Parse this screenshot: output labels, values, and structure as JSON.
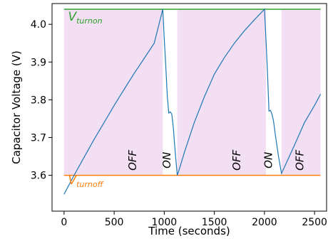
{
  "chart_data": {
    "type": "line",
    "xlabel": "Time (seconds)",
    "ylabel": "Capacitor Voltage (V)",
    "xlim": [
      -120,
      2620
    ],
    "ylim": [
      3.505,
      4.055
    ],
    "grid": false,
    "x_ticks": [
      0,
      500,
      1000,
      1500,
      2000,
      2500
    ],
    "y_ticks": [
      3.6,
      3.7,
      3.8,
      3.9,
      4.0
    ],
    "x_tick_labels": [
      "0",
      "500",
      "1000",
      "1500",
      "2000",
      "2500"
    ],
    "y_tick_labels": [
      "3.6",
      "3.7",
      "3.8",
      "3.9",
      "4.0"
    ],
    "thresholds": [
      {
        "main": "V",
        "sub": "turnon",
        "y": 4.04,
        "color": "#2ca02c",
        "label_x": 40,
        "label_y": 4.01
      },
      {
        "main": "V",
        "sub": "turnoff",
        "y": 3.6,
        "color": "#ff7f0e",
        "label_x": 40,
        "label_y": 3.577
      }
    ],
    "shaded_intervals": [
      {
        "x0": 0,
        "x1": 985,
        "color": "#f3dff3"
      },
      {
        "x0": 1130,
        "x1": 2015,
        "color": "#f3dff3"
      },
      {
        "x0": 2170,
        "x1": 2560,
        "color": "#f3dff3"
      }
    ],
    "phase_labels": [
      {
        "text": "OFF",
        "x": 720,
        "y": 3.64
      },
      {
        "text": "ON",
        "x": 1060,
        "y": 3.64
      },
      {
        "text": "OFF",
        "x": 1760,
        "y": 3.64
      },
      {
        "text": "ON",
        "x": 2075,
        "y": 3.64
      },
      {
        "text": "OFF",
        "x": 2390,
        "y": 3.64
      }
    ],
    "series": [
      {
        "color": "#1f77b4",
        "x": [
          0,
          50,
          100,
          200,
          300,
          400,
          500,
          600,
          700,
          800,
          900,
          985,
          1000,
          1015,
          1030,
          1045,
          1060,
          1075,
          1090,
          1110,
          1130,
          1160,
          1200,
          1300,
          1400,
          1500,
          1600,
          1700,
          1800,
          1900,
          2000,
          2015,
          2030,
          2045,
          2060,
          2075,
          2090,
          2110,
          2140,
          2170,
          2200,
          2300,
          2400,
          2500,
          2560
        ],
        "y": [
          3.55,
          3.575,
          3.6,
          3.648,
          3.695,
          3.74,
          3.785,
          3.828,
          3.87,
          3.91,
          3.95,
          4.04,
          3.96,
          3.89,
          3.81,
          3.765,
          3.768,
          3.762,
          3.728,
          3.66,
          3.6,
          3.625,
          3.66,
          3.74,
          3.808,
          3.868,
          3.912,
          3.95,
          3.983,
          4.012,
          4.04,
          3.96,
          3.875,
          3.77,
          3.772,
          3.762,
          3.745,
          3.705,
          3.65,
          3.605,
          3.622,
          3.68,
          3.74,
          3.785,
          3.815
        ]
      }
    ]
  }
}
